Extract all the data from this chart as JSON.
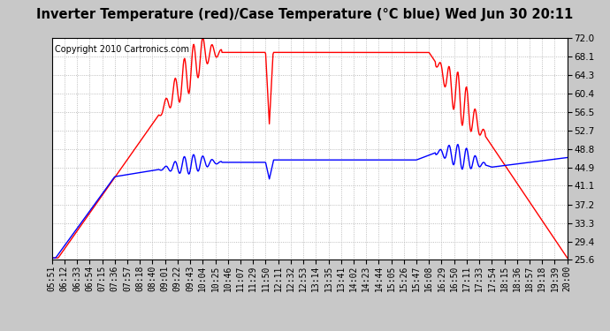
{
  "title": "Inverter Temperature (red)/Case Temperature (°C blue) Wed Jun 30 20:11",
  "copyright": "Copyright 2010 Cartronics.com",
  "ylabel_ticks": [
    25.6,
    29.4,
    33.3,
    37.2,
    41.1,
    44.9,
    48.8,
    52.7,
    56.5,
    60.4,
    64.3,
    68.1,
    72.0
  ],
  "x_labels": [
    "05:51",
    "06:12",
    "06:33",
    "06:54",
    "07:15",
    "07:36",
    "07:57",
    "08:18",
    "08:40",
    "09:01",
    "09:22",
    "09:43",
    "10:04",
    "10:25",
    "10:46",
    "11:07",
    "11:29",
    "11:50",
    "12:11",
    "12:32",
    "12:53",
    "13:14",
    "13:35",
    "13:41",
    "14:02",
    "14:23",
    "14:44",
    "15:05",
    "15:26",
    "15:47",
    "16:08",
    "16:29",
    "16:50",
    "17:11",
    "17:33",
    "17:54",
    "18:15",
    "18:36",
    "18:57",
    "19:18",
    "19:39",
    "20:00"
  ],
  "bg_color": "#c8c8c8",
  "plot_bg": "#ffffff",
  "red_color": "#ff0000",
  "blue_color": "#0000ff",
  "grid_color": "#aaaaaa",
  "ylim": [
    25.6,
    72.0
  ],
  "title_fontsize": 11,
  "copyright_fontsize": 7,
  "tick_fontsize": 7.5
}
